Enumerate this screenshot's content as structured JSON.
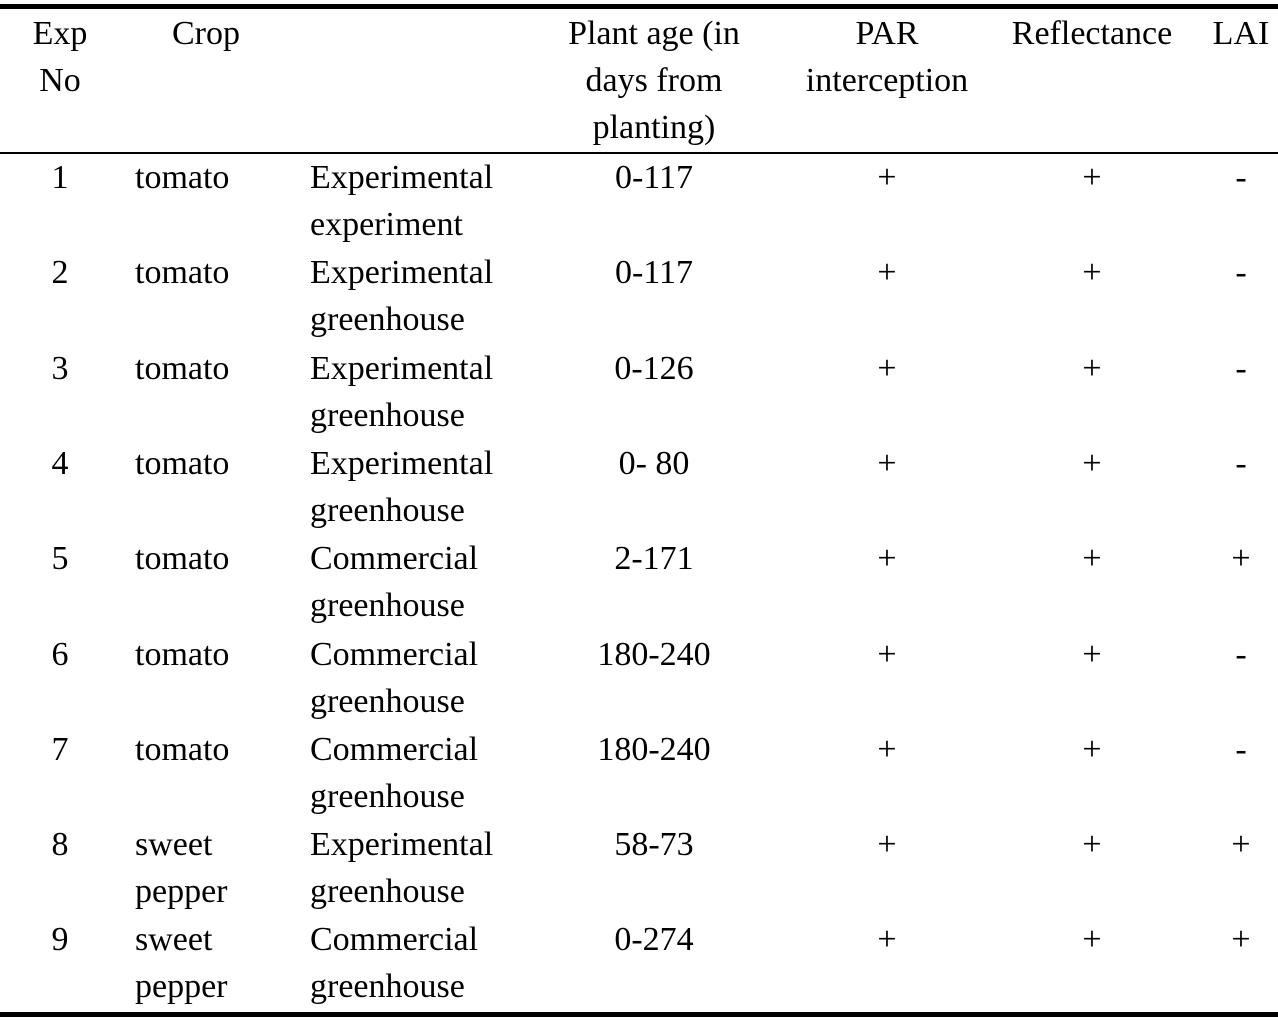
{
  "table": {
    "headers": {
      "exp_no": "Exp\nNo",
      "crop": "Crop",
      "plant_age": "Plant age (in\ndays from\nplanting)",
      "par": "PAR\ninterception",
      "reflectance": "Reflectance",
      "lai": "LAI"
    },
    "rows": [
      {
        "exp": "1",
        "crop": "tomato",
        "setting": "Experimental\nexperiment",
        "age": "0-117",
        "par": "+",
        "refl": "+",
        "lai": "-"
      },
      {
        "exp": "2",
        "crop": "tomato",
        "setting": "Experimental\ngreenhouse",
        "age": "0-117",
        "par": "+",
        "refl": "+",
        "lai": "-"
      },
      {
        "exp": "3",
        "crop": "tomato",
        "setting": "Experimental\ngreenhouse",
        "age": "0-126",
        "par": "+",
        "refl": "+",
        "lai": "-"
      },
      {
        "exp": "4",
        "crop": "tomato",
        "setting": "Experimental\ngreenhouse",
        "age": "0- 80",
        "par": "+",
        "refl": "+",
        "lai": "-"
      },
      {
        "exp": "5",
        "crop": "tomato",
        "setting": "Commercial\ngreenhouse",
        "age": "2-171",
        "par": "+",
        "refl": "+",
        "lai": "+"
      },
      {
        "exp": "6",
        "crop": "tomato",
        "setting": "Commercial\ngreenhouse",
        "age": "180-240",
        "par": "+",
        "refl": "+",
        "lai": "-"
      },
      {
        "exp": "7",
        "crop": "tomato",
        "setting": "Commercial\ngreenhouse",
        "age": "180-240",
        "par": "+",
        "refl": "+",
        "lai": "-"
      },
      {
        "exp": "8",
        "crop": "sweet\npepper",
        "setting": "Experimental\ngreenhouse",
        "age": "58-73",
        "par": "+",
        "refl": "+",
        "lai": "+"
      },
      {
        "exp": "9",
        "crop": "sweet\npepper",
        "setting": "Commercial\ngreenhouse",
        "age": "0-274",
        "par": "+",
        "refl": "+",
        "lai": "+"
      }
    ]
  }
}
